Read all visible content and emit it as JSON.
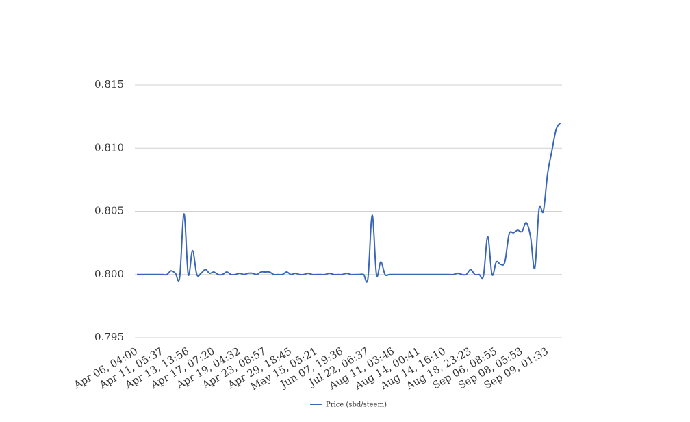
{
  "chart_data": {
    "type": "line",
    "categories": [
      "Apr 06, 04:00",
      null,
      null,
      null,
      null,
      null,
      "Apr 11, 05:37",
      null,
      null,
      null,
      null,
      null,
      "Apr 13, 13:56",
      null,
      null,
      null,
      null,
      null,
      "Apr 17, 07:20",
      null,
      null,
      null,
      null,
      null,
      "Apr 19, 04:32",
      null,
      null,
      null,
      null,
      null,
      "Apr 23, 08:57",
      null,
      null,
      null,
      null,
      null,
      "Apr 29, 18:45",
      null,
      null,
      null,
      null,
      null,
      "May 15, 05:21",
      null,
      null,
      null,
      null,
      null,
      "Jun 07, 19:36",
      null,
      null,
      null,
      null,
      null,
      "Jul 22, 06:37",
      null,
      null,
      null,
      null,
      null,
      "Aug 11, 03:46",
      null,
      null,
      null,
      null,
      null,
      "Aug 14, 00:41",
      null,
      null,
      null,
      null,
      null,
      "Aug 14, 16:10",
      null,
      null,
      null,
      null,
      null,
      "Aug 18, 23:23",
      null,
      null,
      null,
      null,
      null,
      "Sep 06, 08:55",
      null,
      null,
      null,
      null,
      null,
      "Sep 08, 05:53",
      null,
      null,
      null,
      null,
      null,
      "Sep 09, 01:33",
      null,
      null,
      null
    ],
    "series": [
      {
        "name": "Price (sbd/steem)",
        "color": "#3a66b8",
        "values": [
          0.8,
          0.8,
          0.8,
          0.8,
          0.8,
          0.8,
          0.8,
          0.8,
          0.8003,
          0.8001,
          0.7998,
          0.8048,
          0.8,
          0.8019,
          0.8,
          0.8001,
          0.8004,
          0.8001,
          0.8002,
          0.8,
          0.8,
          0.8002,
          0.8,
          0.8,
          0.8001,
          0.8,
          0.8001,
          0.8001,
          0.8,
          0.8002,
          0.8002,
          0.8002,
          0.8,
          0.8,
          0.8,
          0.8002,
          0.8,
          0.8001,
          0.8,
          0.8,
          0.8001,
          0.8,
          0.8,
          0.8,
          0.8,
          0.8001,
          0.8,
          0.8,
          0.8,
          0.8001,
          0.8,
          0.8,
          0.8,
          0.8,
          0.7997,
          0.8047,
          0.8,
          0.801,
          0.8,
          0.8,
          0.8,
          0.8,
          0.8,
          0.8,
          0.8,
          0.8,
          0.8,
          0.8,
          0.8,
          0.8,
          0.8,
          0.8,
          0.8,
          0.8,
          0.8,
          0.8001,
          0.8,
          0.8,
          0.8004,
          0.8,
          0.8,
          0.7999,
          0.803,
          0.8,
          0.801,
          0.8008,
          0.801,
          0.8032,
          0.8033,
          0.8035,
          0.8034,
          0.8041,
          0.803,
          0.8005,
          0.8052,
          0.805,
          0.808,
          0.8098,
          0.8115,
          0.812
        ]
      }
    ],
    "ylim": [
      0.795,
      0.815
    ],
    "yticks": [
      0.795,
      {
        "value": 0.8,
        "label": "0.800"
      },
      0.805,
      {
        "value": 0.81,
        "label": "0.810"
      },
      0.815
    ],
    "grid": true,
    "legend": "bottom"
  }
}
